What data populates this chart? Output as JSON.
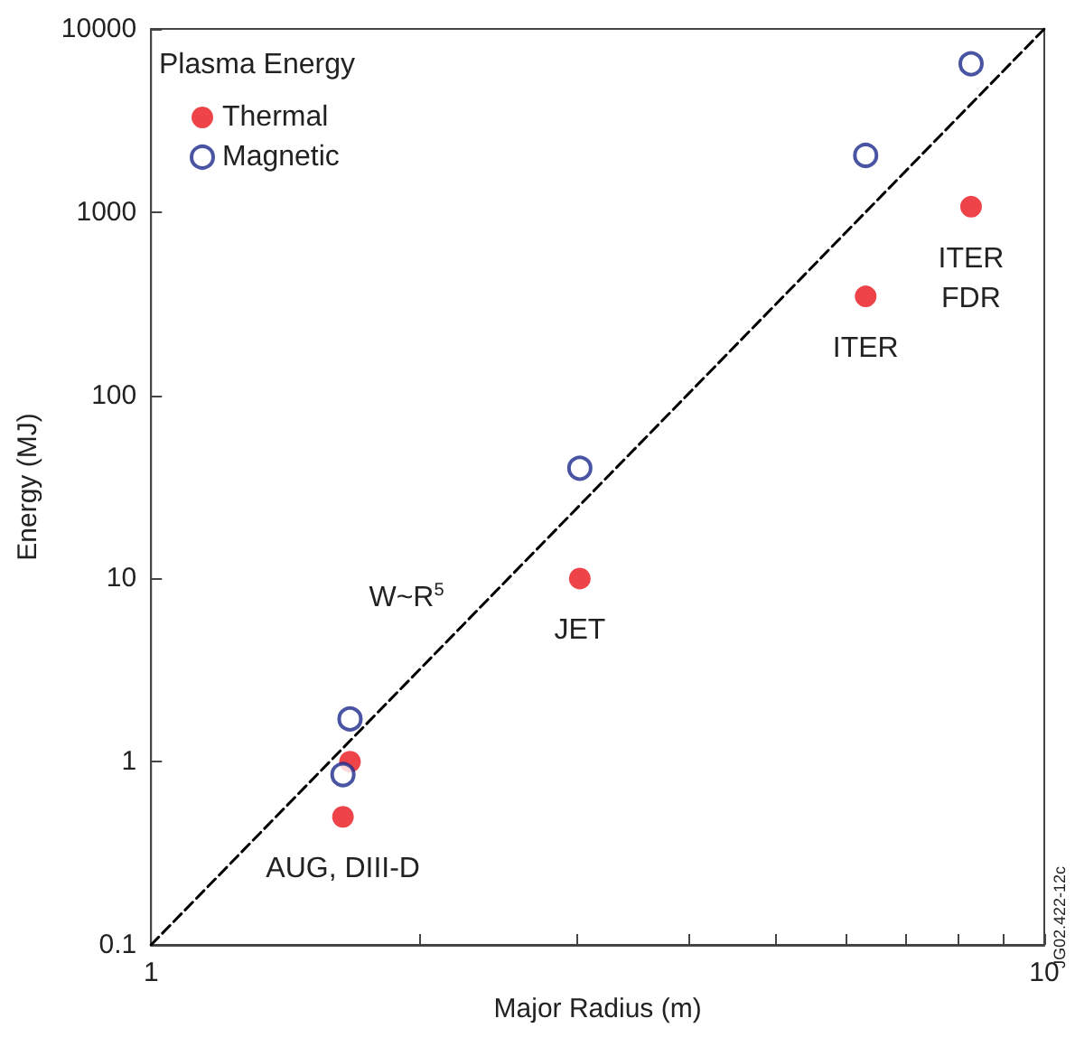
{
  "chart_data": {
    "type": "scatter",
    "xlabel": "Major Radius (m)",
    "ylabel": "Energy (MJ)",
    "log": "xy",
    "xlim": [
      1,
      10
    ],
    "xticks": [
      1,
      {
        "value": 2,
        "label": null
      },
      {
        "value": 3,
        "label": null
      },
      {
        "value": 4,
        "label": null
      },
      {
        "value": 5,
        "label": null
      },
      {
        "value": 6,
        "label": null
      },
      {
        "value": 7,
        "label": null
      },
      {
        "value": 8,
        "label": null
      },
      {
        "value": 9,
        "label": null
      },
      10
    ],
    "ylim": [
      0.1,
      10000
    ],
    "yticks": [
      0.1,
      1,
      10,
      100,
      1000,
      10000
    ],
    "grid": false,
    "legend": "top left",
    "legend_title": "Plasma Energy",
    "marker": "circle",
    "x": [
      1.67,
      1.64,
      3.02,
      6.31,
      8.28
    ],
    "series": [
      {
        "name": "Thermal",
        "color": "#e8141b",
        "values": [
          1.0,
          0.5,
          10,
          347,
          1070
        ]
      },
      {
        "name": "Magnetic",
        "color": "#1c2a8c",
        "values": [
          1.71,
          0.85,
          40,
          2040,
          6450
        ]
      },
      {
        "type": "line",
        "color": "#000000",
        "x": [
          1,
          10
        ],
        "values": [
          0.1,
          10000
        ],
        "line_style": "dashed",
        "marker": "none"
      }
    ],
    "annotations": [
      {
        "text": "AUG, DIII-D",
        "x": 1.64,
        "y": 0.5
      },
      {
        "text": "JET",
        "x": 3.02,
        "y": 10
      },
      {
        "text": "ITER",
        "x": 6.31,
        "y": 347
      },
      {
        "text": "ITER\nFDR",
        "x": 8.28,
        "y": 1070
      },
      "W~R$^{5}$",
      "JG02.422-12c"
    ]
  }
}
